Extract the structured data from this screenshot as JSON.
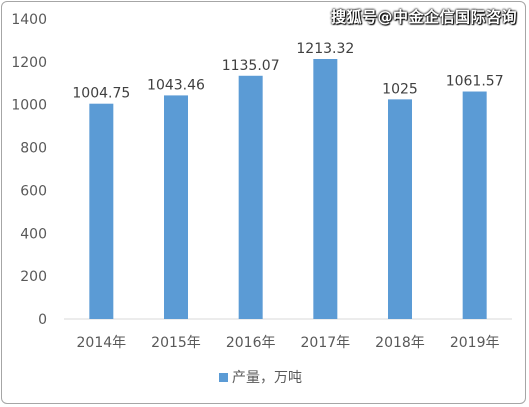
{
  "watermark": "搜狐号@中金企信国际咨询",
  "chart_data": {
    "type": "bar",
    "categories": [
      "2014年",
      "2015年",
      "2016年",
      "2017年",
      "2018年",
      "2019年"
    ],
    "series": [
      {
        "name": "产量，万吨",
        "values": [
          1004.75,
          1043.46,
          1135.07,
          1213.32,
          1025,
          1061.57
        ]
      }
    ],
    "data_labels": [
      "1004.75",
      "1043.46",
      "1135.07",
      "1213.32",
      "1025",
      "1061.57"
    ],
    "ylim": [
      0,
      1400
    ],
    "yticks": [
      0,
      200,
      400,
      600,
      800,
      1000,
      1200,
      1400
    ],
    "grid": false,
    "legend_position": "bottom",
    "bar_color": "#5b9bd5"
  }
}
